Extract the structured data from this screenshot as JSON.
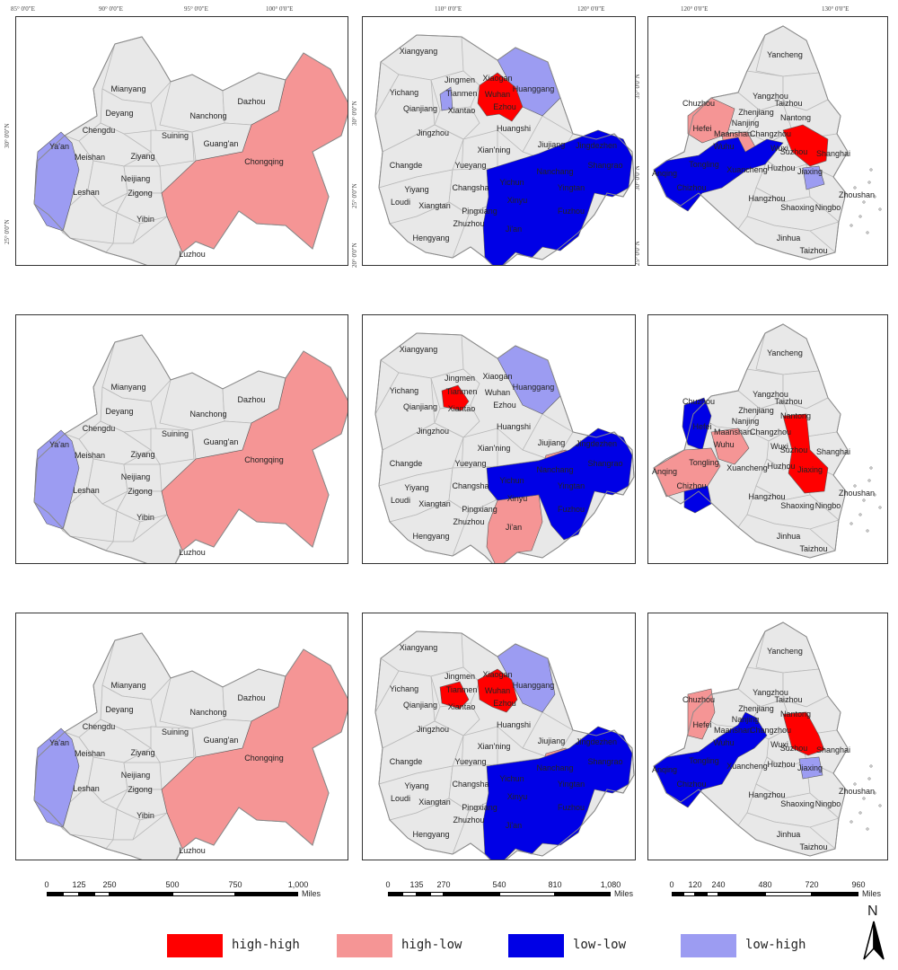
{
  "colors": {
    "high_high": "#ff0000",
    "high_low": "#f59595",
    "low_low": "#0000e6",
    "low_high": "#9c9cf2",
    "base": "#e8e8e8",
    "border": "#9a9a9a"
  },
  "graticule": {
    "west_top": [
      "85° 0'0\"E",
      "90° 0'0\"E",
      "95° 0'0\"E",
      "100° 0'0\"E"
    ],
    "west_left": [
      "30° 0'0\"N",
      "25° 0'0\"N"
    ],
    "center_top": [
      "110° 0'0\"E",
      "120° 0'0\"E"
    ],
    "center_left": [
      "30° 0'0\"N",
      "25° 0'0\"N",
      "20° 0'0\"N"
    ],
    "east_top": [
      "120° 0'0\"E",
      "130° 0'0\"E"
    ],
    "east_left": [
      "35° 0'0\"N",
      "30° 0'0\"N",
      "25° 0'0\"N"
    ]
  },
  "chengyu_labels": [
    "Mianyang",
    "Deyang",
    "Nanchong",
    "Dazhou",
    "Chengdu",
    "Suining",
    "Guang'an",
    "Ya'an",
    "Meishan",
    "Ziyang",
    "Chongqing",
    "Neijiang",
    "Leshan",
    "Zigong",
    "Yibin",
    "Luzhou"
  ],
  "middle_labels": [
    "Xiangyang",
    "Jingmen",
    "Xiaogan",
    "Yichang",
    "Tianmen",
    "Wuhan",
    "Huanggang",
    "Qianjiang",
    "Ezhou",
    "Xiantao",
    "Huangshi",
    "Jingzhou",
    "Xian'ning",
    "Jiujiang",
    "Jingdezhen",
    "Changde",
    "Yueyang",
    "Nanchang",
    "Shangrao",
    "Yiyang",
    "Changsha",
    "Yichun",
    "Yingtan",
    "Loudi",
    "Xinyu",
    "Fuzhou",
    "Xiangtan",
    "Pingxiang",
    "Zhuzhou",
    "Ji'an",
    "Hengyang"
  ],
  "yangtze_labels": [
    "Yancheng",
    "Yangzhou",
    "Taizhou",
    "Chuzhou",
    "Nantong",
    "Hefei",
    "Zhenjiang",
    "Nanjing",
    "Changzhou",
    "Maanshan",
    "Wuxi",
    "Wuhu",
    "Suzhou",
    "Shanghai",
    "Anqing",
    "Tongling",
    "Xuancheng",
    "Huzhou",
    "Jiaxing",
    "Chizhou",
    "Hangzhou",
    "Zhoushan",
    "Shaoxing",
    "Ningbo",
    "Jinhua",
    "Taizhou"
  ],
  "scales": [
    {
      "ticks": [
        "0",
        "125",
        "250",
        "500",
        "750",
        "1,000"
      ],
      "unit": "Miles"
    },
    {
      "ticks": [
        "0",
        "135",
        "270",
        "540",
        "810",
        "1,080"
      ],
      "unit": "Miles"
    },
    {
      "ticks": [
        "0",
        "120",
        "240",
        "480",
        "720",
        "960"
      ],
      "unit": "Miles"
    }
  ],
  "legend": [
    {
      "label": "high-high",
      "color": "#ff0000"
    },
    {
      "label": "high-low",
      "color": "#f59595"
    },
    {
      "label": "low-low",
      "color": "#0000e6"
    },
    {
      "label": "low-high",
      "color": "#9c9cf2"
    }
  ],
  "north_label": "N"
}
